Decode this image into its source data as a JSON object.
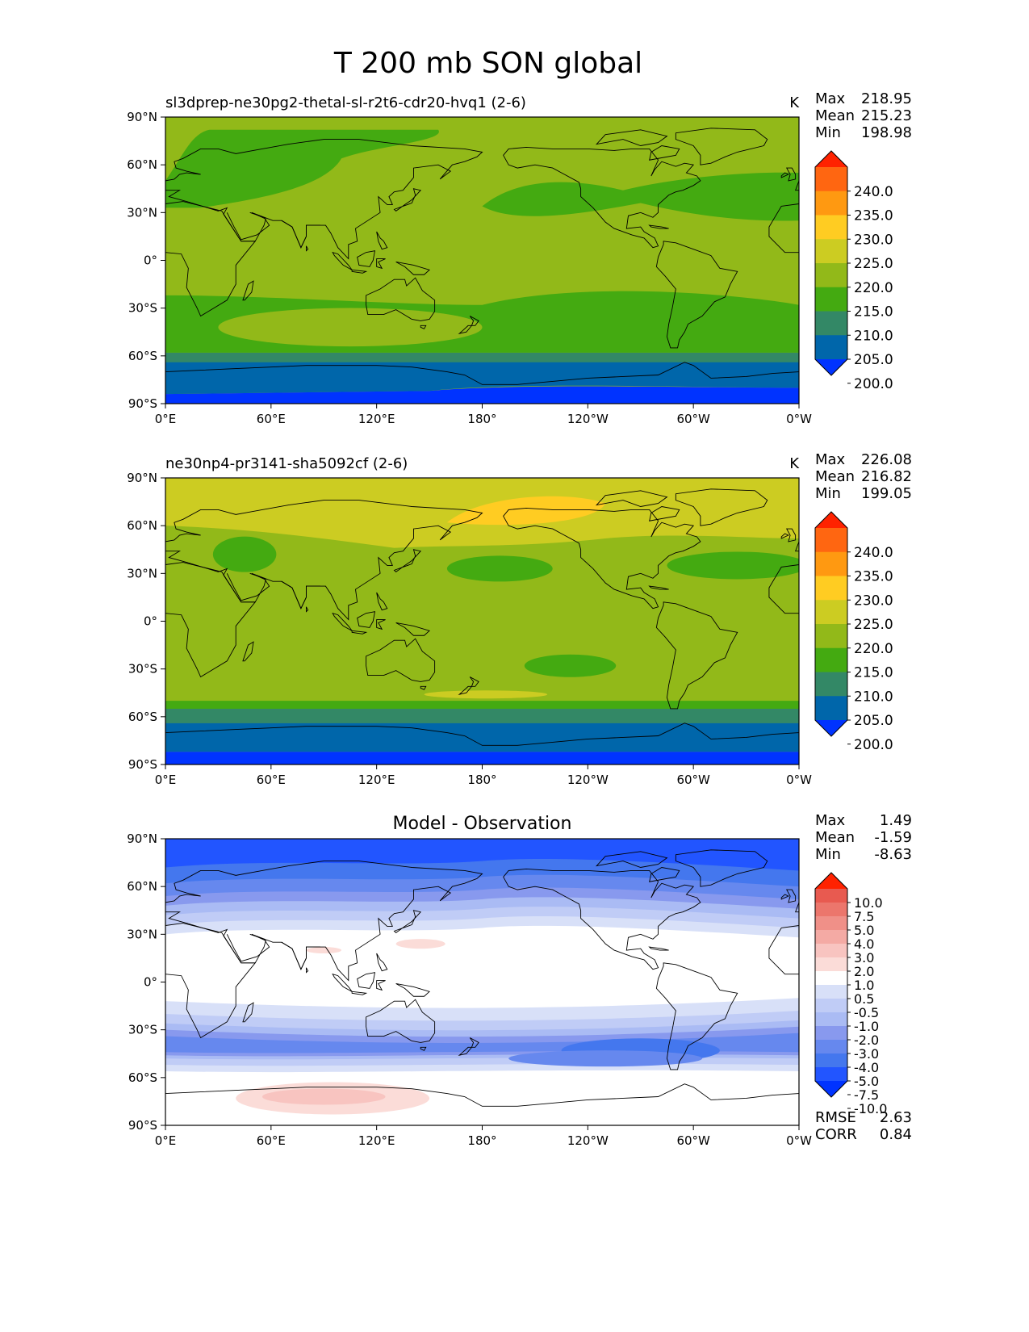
{
  "figure": {
    "title": "T 200 mb SON global"
  },
  "axes": {
    "lat_ticks": [
      "90°N",
      "60°N",
      "30°N",
      "0°",
      "30°S",
      "60°S",
      "90°S"
    ],
    "lon_ticks": [
      "0°E",
      "60°E",
      "120°E",
      "180°",
      "120°W",
      "60°W",
      "0°W"
    ]
  },
  "colors": {
    "abs_levels": [
      "#0033ff",
      "#0066aa",
      "#338866",
      "#44aa11",
      "#92b919",
      "#cccc22",
      "#ffcc22",
      "#ff9911",
      "#ff6611",
      "#ff2200"
    ],
    "diff_levels": [
      "#0033ff",
      "#2255ff",
      "#4477ee",
      "#6688ee",
      "#8899ee",
      "#aabbf4",
      "#c0ccf6",
      "#d8e0f8",
      "#ffffff",
      "#fbdcd8",
      "#f8c4c0",
      "#f4aaa4",
      "#f09088",
      "#ec766c",
      "#e85a50",
      "#ff2200"
    ]
  },
  "panels": [
    {
      "subtitle": "sl3dprep-ne30pg2-thetal-sl-r2t6-cdr20-hvq1 (2-6)",
      "units": "K",
      "stats": {
        "max_label": "Max",
        "max": "218.95",
        "mean_label": "Mean",
        "mean": "215.23",
        "min_label": "Min",
        "min": "198.98"
      },
      "colorbar_labels": [
        "240.0",
        "235.0",
        "230.0",
        "225.0",
        "220.0",
        "215.0",
        "210.0",
        "205.0",
        "200.0"
      ]
    },
    {
      "subtitle": "ne30np4-pr3141-sha5092cf (2-6)",
      "units": "K",
      "stats": {
        "max_label": "Max",
        "max": "226.08",
        "mean_label": "Mean",
        "mean": "216.82",
        "min_label": "Min",
        "min": "199.05"
      },
      "colorbar_labels": [
        "240.0",
        "235.0",
        "230.0",
        "225.0",
        "220.0",
        "215.0",
        "210.0",
        "205.0",
        "200.0"
      ]
    },
    {
      "title": "Model - Observation",
      "stats": {
        "max_label": "Max",
        "max": "1.49",
        "mean_label": "Mean",
        "mean": "-1.59",
        "min_label": "Min",
        "min": "-8.63"
      },
      "colorbar_labels": [
        "10.0",
        "7.5",
        "5.0",
        "4.0",
        "3.0",
        "2.0",
        "1.0",
        "0.5",
        "-0.5",
        "-1.0",
        "-2.0",
        "-3.0",
        "-4.0",
        "-5.0",
        "-7.5",
        "-10.0"
      ],
      "metrics": {
        "rmse_label": "RMSE",
        "rmse": "2.63",
        "corr_label": "CORR",
        "corr": "0.84"
      }
    }
  ]
}
